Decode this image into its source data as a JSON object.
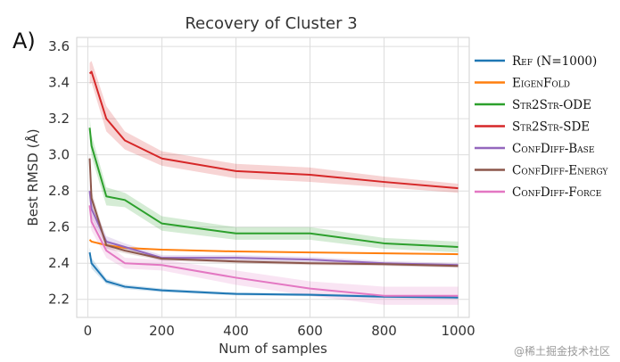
{
  "panel_label": "A)",
  "watermark": "@稀土掘金技术社区",
  "chart_data": {
    "type": "line",
    "title": "Recovery of Cluster 3",
    "xlabel": "Num of samples",
    "ylabel": "Best RMSD (Å)",
    "xlim": [
      -30,
      1030
    ],
    "ylim": [
      2.1,
      3.65
    ],
    "xticks": [
      0,
      200,
      400,
      600,
      800,
      1000
    ],
    "yticks": [
      2.2,
      2.4,
      2.6,
      2.8,
      3.0,
      3.2,
      3.4,
      3.6
    ],
    "xtick_labels": [
      "0",
      "200",
      "400",
      "600",
      "800",
      "1000"
    ],
    "ytick_labels": [
      "2.2",
      "2.4",
      "2.6",
      "2.8",
      "3.0",
      "3.2",
      "3.4",
      "3.6"
    ],
    "grid": true,
    "legend_position": "right-outside",
    "series": [
      {
        "name": "Ref (N=1000)",
        "color": "#1f77b4",
        "x": [
          5,
          10,
          50,
          100,
          200,
          400,
          600,
          800,
          1000
        ],
        "y": [
          2.46,
          2.4,
          2.3,
          2.27,
          2.25,
          2.23,
          2.225,
          2.215,
          2.21
        ],
        "band": [
          0.03,
          0.03,
          0.015,
          0.012,
          0.01,
          0.008,
          0.008,
          0.008,
          0.008
        ]
      },
      {
        "name": "EigenFold",
        "color": "#ff7f0e",
        "x": [
          5,
          10,
          50,
          100,
          200,
          400,
          600,
          800,
          1000
        ],
        "y": [
          2.53,
          2.52,
          2.5,
          2.485,
          2.475,
          2.465,
          2.46,
          2.455,
          2.45
        ],
        "band": [
          0.006,
          0.006,
          0.005,
          0.005,
          0.004,
          0.004,
          0.004,
          0.004,
          0.004
        ]
      },
      {
        "name": "Str2Str-ODE",
        "color": "#2ca02c",
        "x": [
          5,
          10,
          50,
          100,
          200,
          400,
          600,
          800,
          1000
        ],
        "y": [
          3.15,
          3.05,
          2.77,
          2.75,
          2.62,
          2.565,
          2.565,
          2.51,
          2.49
        ],
        "band": [
          0.06,
          0.06,
          0.05,
          0.04,
          0.04,
          0.035,
          0.035,
          0.03,
          0.03
        ]
      },
      {
        "name": "Str2Str-SDE",
        "color": "#d62728",
        "x": [
          5,
          10,
          50,
          100,
          200,
          400,
          600,
          800,
          1000
        ],
        "y": [
          3.45,
          3.46,
          3.2,
          3.08,
          2.98,
          2.91,
          2.89,
          2.85,
          2.815
        ],
        "band": [
          0.06,
          0.06,
          0.07,
          0.05,
          0.04,
          0.04,
          0.04,
          0.03,
          0.025
        ]
      },
      {
        "name": "ConfDiff-Base",
        "color": "#9467bd",
        "x": [
          5,
          10,
          50,
          100,
          200,
          400,
          600,
          800,
          1000
        ],
        "y": [
          2.8,
          2.7,
          2.52,
          2.49,
          2.43,
          2.43,
          2.42,
          2.4,
          2.39
        ],
        "band": [
          0.05,
          0.05,
          0.03,
          0.02,
          0.015,
          0.015,
          0.015,
          0.012,
          0.012
        ]
      },
      {
        "name": "ConfDiff-Energy",
        "color": "#8c564b",
        "x": [
          5,
          10,
          50,
          100,
          200,
          400,
          600,
          800,
          1000
        ],
        "y": [
          2.98,
          2.76,
          2.5,
          2.47,
          2.425,
          2.41,
          2.4,
          2.395,
          2.385
        ],
        "band": [
          0.05,
          0.04,
          0.02,
          0.015,
          0.01,
          0.01,
          0.01,
          0.01,
          0.01
        ]
      },
      {
        "name": "ConfDiff-Force",
        "color": "#e377c2",
        "x": [
          5,
          10,
          50,
          100,
          200,
          400,
          600,
          800,
          1000
        ],
        "y": [
          2.72,
          2.63,
          2.47,
          2.4,
          2.39,
          2.32,
          2.26,
          2.22,
          2.22
        ],
        "band": [
          0.05,
          0.05,
          0.04,
          0.03,
          0.03,
          0.04,
          0.04,
          0.05,
          0.05
        ]
      }
    ]
  }
}
